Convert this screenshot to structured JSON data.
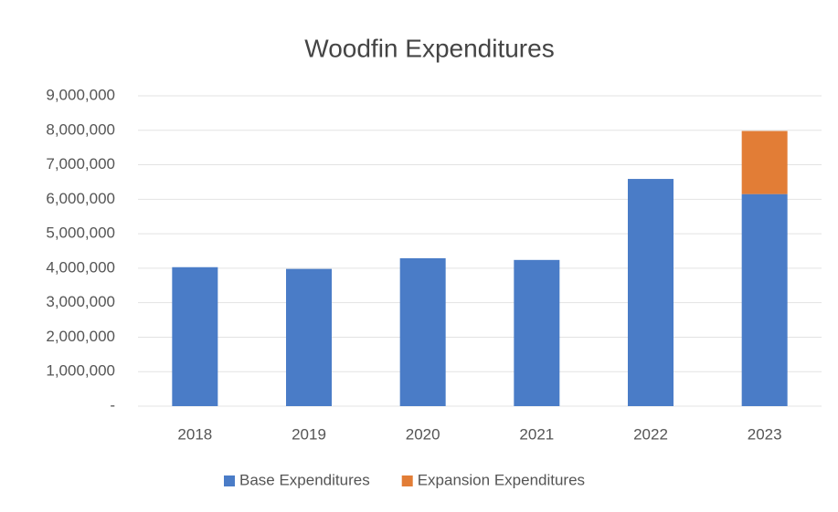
{
  "chart_data": {
    "type": "stacked_bar",
    "title": "Woodfin Expenditures",
    "categories": [
      "2018",
      "2019",
      "2020",
      "2021",
      "2022",
      "2023"
    ],
    "series": [
      {
        "name": "Base Expenditures",
        "color": "#4a7cc7",
        "values": [
          4030000,
          3980000,
          4290000,
          4240000,
          6590000,
          6150000
        ]
      },
      {
        "name": "Expansion Expenditures",
        "color": "#e27d36",
        "values": [
          0,
          0,
          0,
          0,
          0,
          1830000
        ]
      }
    ],
    "ylim": [
      0,
      9000000
    ],
    "yticks": [
      {
        "value": 0,
        "label": "-"
      },
      {
        "value": 1000000,
        "label": "1,000,000"
      },
      {
        "value": 2000000,
        "label": "2,000,000"
      },
      {
        "value": 3000000,
        "label": "3,000,000"
      },
      {
        "value": 4000000,
        "label": "4,000,000"
      },
      {
        "value": 5000000,
        "label": "5,000,000"
      },
      {
        "value": 6000000,
        "label": "6,000,000"
      },
      {
        "value": 7000000,
        "label": "7,000,000"
      },
      {
        "value": 8000000,
        "label": "8,000,000"
      },
      {
        "value": 9000000,
        "label": "9,000,000"
      }
    ],
    "grid": true,
    "legend": "bottom"
  }
}
